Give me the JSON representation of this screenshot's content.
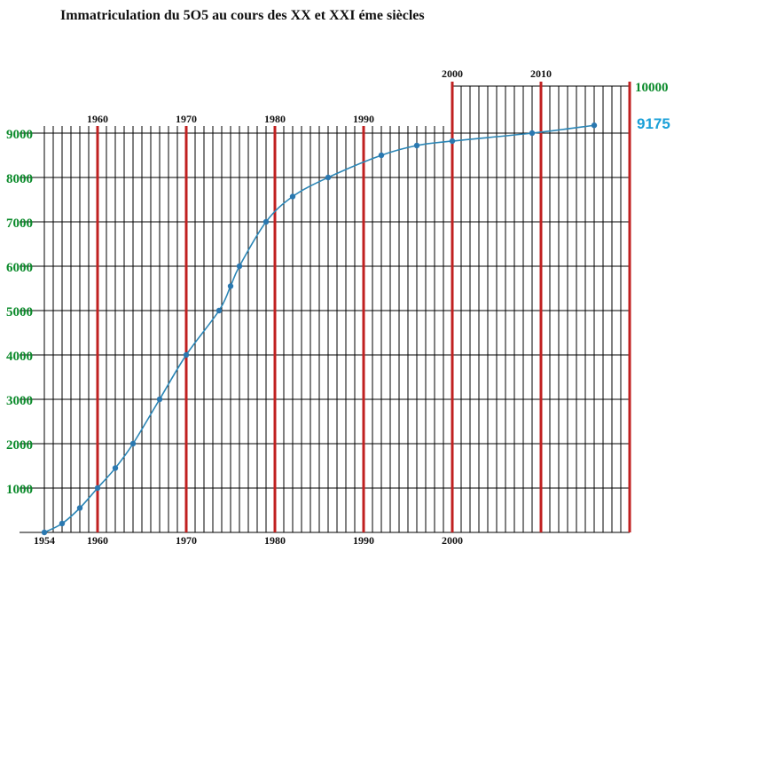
{
  "chart_data": {
    "type": "line",
    "title": "Immatriculation du 5O5 au cours des  XX et XXI éme siècles",
    "x": [
      1954,
      1956,
      1958,
      1960,
      1962,
      1964,
      1967,
      1970,
      1973.7,
      1975,
      1976,
      1979,
      1982,
      1986,
      1992,
      1996,
      2000,
      2009,
      2016
    ],
    "values": [
      0,
      200,
      550,
      1000,
      1450,
      2000,
      3000,
      4000,
      5000,
      5550,
      6000,
      7000,
      7570,
      8000,
      8500,
      8720,
      8820,
      9000,
      9175
    ],
    "xlim": [
      1954,
      2020
    ],
    "ylim": [
      0,
      9000
    ],
    "ylim_upper": 10000,
    "y_ticks": [
      "1000",
      "2000",
      "3000",
      "4000",
      "5000",
      "6000",
      "7000",
      "8000",
      "9000"
    ],
    "x_ticks_bottom": [
      "1954",
      "1960",
      "1970",
      "1980",
      "1990",
      "2000"
    ],
    "x_ticks_top": [
      "1960",
      "1970",
      "1980",
      "1990"
    ],
    "x_ticks_upper": [
      "2000",
      "2010"
    ],
    "top_value_label": "10000",
    "last_value_label": "9175",
    "colors": {
      "line": "#2b86b6",
      "marker": "#2a78b0",
      "decade_line": "#c02020",
      "grid": "#000000",
      "ytick": "#0a8a2a",
      "last_value": "#1aa0d8"
    }
  }
}
